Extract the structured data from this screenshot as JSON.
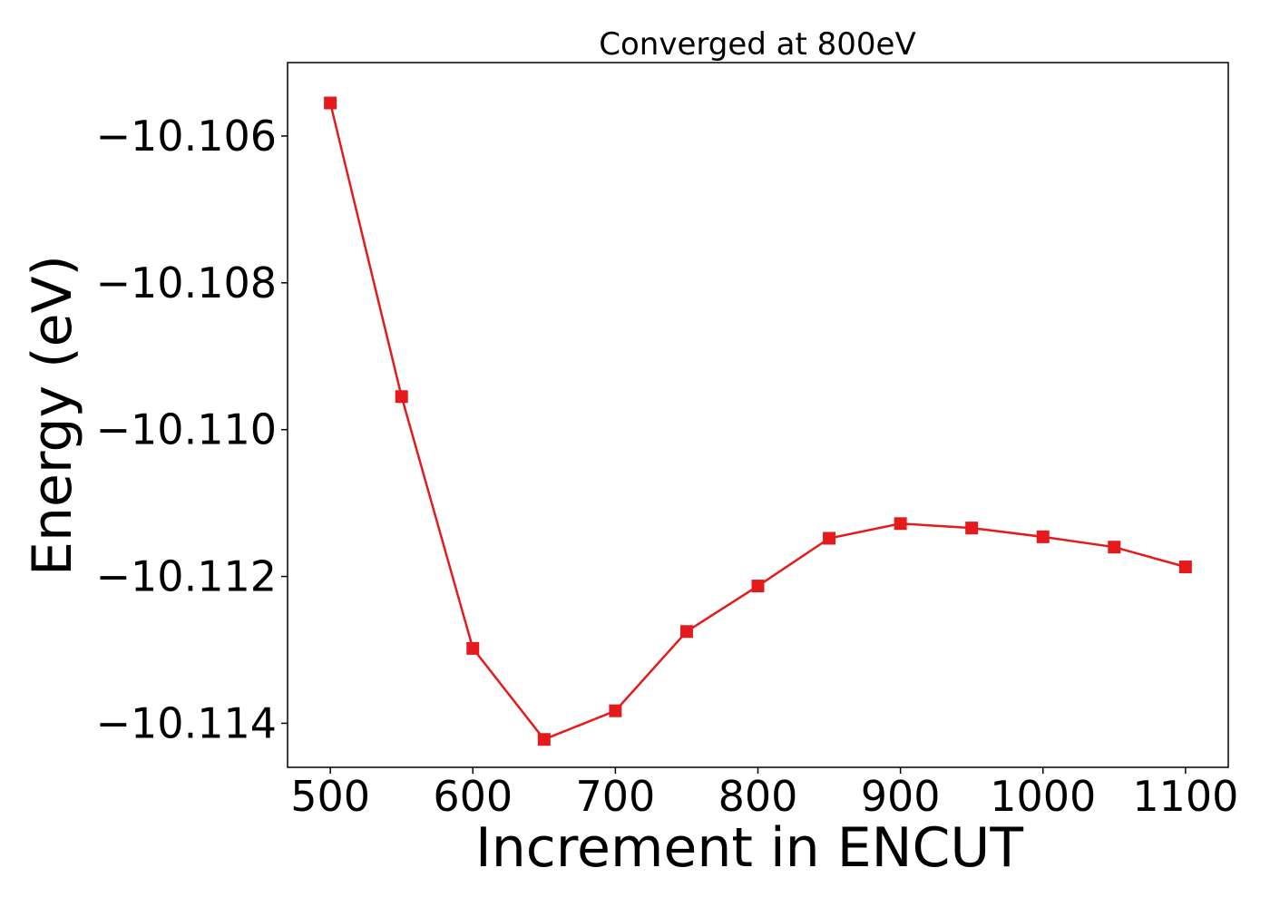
{
  "chart_data": {
    "type": "line",
    "title": "Converged at 800eV",
    "xlabel": "Increment in ENCUT",
    "ylabel": "Energy (eV)",
    "xlim": [
      470,
      1130
    ],
    "ylim": [
      -10.1146,
      -10.105
    ],
    "xticks": [
      500,
      600,
      700,
      800,
      900,
      1000,
      1100
    ],
    "xtick_labels": [
      "500",
      "600",
      "700",
      "800",
      "900",
      "1000",
      "1100"
    ],
    "yticks": [
      -10.106,
      -10.108,
      -10.11,
      -10.112,
      -10.114
    ],
    "ytick_labels": [
      "−10.106",
      "−10.108",
      "−10.110",
      "−10.112",
      "−10.114"
    ],
    "grid": false,
    "series": [
      {
        "color": "#e41a1c",
        "marker": "square",
        "x": [
          500,
          550,
          600,
          650,
          700,
          750,
          800,
          850,
          900,
          950,
          1000,
          1050,
          1100
        ],
        "y": [
          -10.10555,
          -10.10955,
          -10.11298,
          -10.11422,
          -10.11383,
          -10.11275,
          -10.11213,
          -10.11148,
          -10.11128,
          -10.11134,
          -10.11146,
          -10.1116,
          -10.11187
        ]
      }
    ]
  }
}
